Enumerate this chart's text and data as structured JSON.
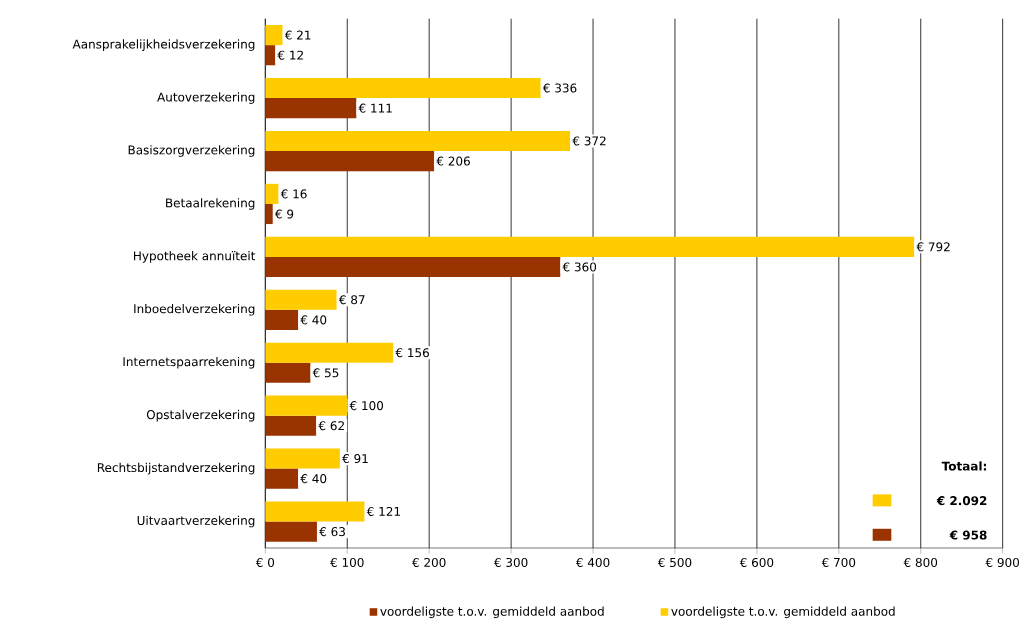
{
  "chart_data": {
    "type": "bar",
    "orientation": "horizontal",
    "categories": [
      "Aansprakelijkheidsverzekering",
      "Autoverzekering",
      "Basiszorgverzekering",
      "Betaalrekening",
      "Hypotheek annuïteit",
      "Inboedelverzekering",
      "Internetspaarrekening",
      "Opstalverzekering",
      "Rechtsbijstandverzekering",
      "Uitvaartverzekering"
    ],
    "series": [
      {
        "name": "voordeligste t.o.v. gemiddeld aanbod",
        "color": "#993300",
        "values": [
          12,
          111,
          206,
          9,
          360,
          40,
          55,
          62,
          40,
          63
        ],
        "value_labels": [
          "€ 12",
          "€ 111",
          "€ 206",
          "€ 9",
          "€ 360",
          "€ 40",
          "€ 55",
          "€ 62",
          "€ 40",
          "€ 63"
        ]
      },
      {
        "name": "voordeligste t.o.v. gemiddeld aanbod",
        "color": "#ffcc00",
        "values": [
          21,
          336,
          372,
          16,
          792,
          87,
          156,
          100,
          91,
          121
        ],
        "value_labels": [
          "€ 21",
          "€ 336",
          "€ 372",
          "€ 16",
          "€ 792",
          "€ 87",
          "€ 156",
          "€ 100",
          "€ 91",
          "€ 121"
        ]
      }
    ],
    "xlim": [
      0,
      900
    ],
    "xticks": [
      {
        "value": 0,
        "label": "€ 0"
      },
      {
        "value": 100,
        "label": "€ 100"
      },
      {
        "value": 200,
        "label": "€ 200"
      },
      {
        "value": 300,
        "label": "€ 300"
      },
      {
        "value": 400,
        "label": "€ 400"
      },
      {
        "value": 500,
        "label": "€ 500"
      },
      {
        "value": 600,
        "label": "€ 600"
      },
      {
        "value": 700,
        "label": "€ 700"
      },
      {
        "value": 800,
        "label": "€ 800"
      },
      {
        "value": 900,
        "label": "€ 900"
      }
    ],
    "grid": "x",
    "legend": "bottom",
    "annotations": [
      "**Totaal:**",
      "**€ 2.092**",
      "**€ 958**"
    ]
  }
}
